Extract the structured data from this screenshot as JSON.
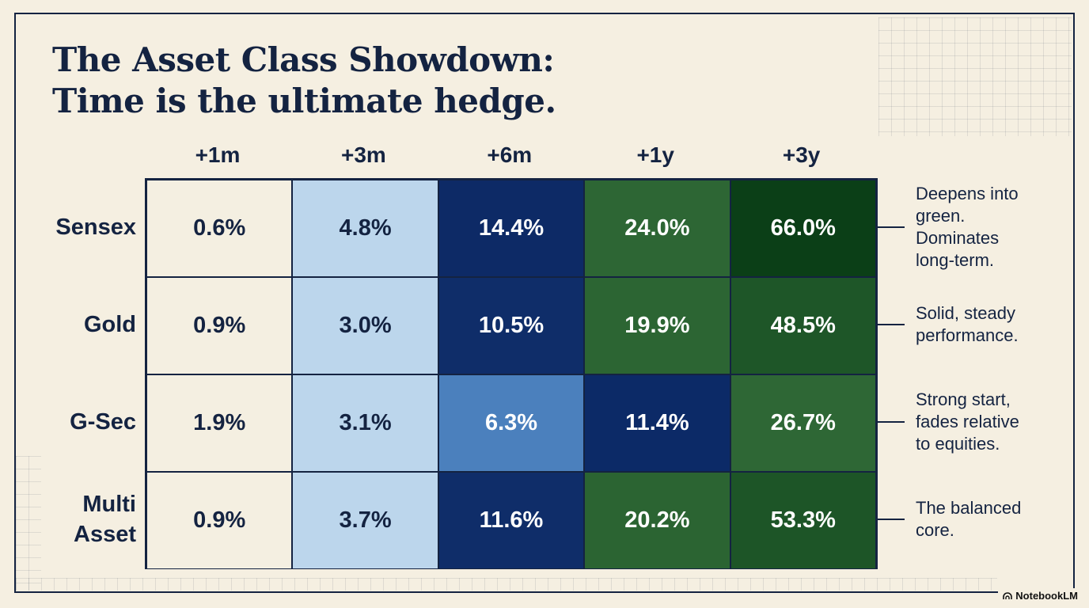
{
  "title": {
    "line1": "The Asset Class Showdown:",
    "line2": "Time is the ultimate hedge."
  },
  "chart_data": {
    "type": "heatmap",
    "title": "The Asset Class Showdown: Time is the ultimate hedge.",
    "columns": [
      "+1m",
      "+3m",
      "+6m",
      "+1y",
      "+3y"
    ],
    "rows": [
      "Sensex",
      "Gold",
      "G-Sec",
      "Multi Asset"
    ],
    "values": [
      [
        0.6,
        4.8,
        14.4,
        24.0,
        66.0
      ],
      [
        0.9,
        3.0,
        10.5,
        19.9,
        48.5
      ],
      [
        1.9,
        3.1,
        6.3,
        11.4,
        26.7
      ],
      [
        0.9,
        3.7,
        11.6,
        20.2,
        53.3
      ]
    ],
    "labels": [
      [
        "0.6%",
        "4.8%",
        "14.4%",
        "24.0%",
        "66.0%"
      ],
      [
        "0.9%",
        "3.0%",
        "10.5%",
        "19.9%",
        "48.5%"
      ],
      [
        "1.9%",
        "3.1%",
        "6.3%",
        "11.4%",
        "26.7%"
      ],
      [
        "0.9%",
        "3.7%",
        "11.6%",
        "20.2%",
        "53.3%"
      ]
    ],
    "cell_colors": [
      [
        "#f4efe1",
        "#bcd6ec",
        "#0d2a66",
        "#2d6634",
        "#0b3f17"
      ],
      [
        "#f4efe1",
        "#bcd6ec",
        "#0f2d69",
        "#2c6533",
        "#1e5628"
      ],
      [
        "#f4efe1",
        "#bcd6ec",
        "#4b80bd",
        "#0c2a67",
        "#2e6735"
      ],
      [
        "#f4efe1",
        "#bcd6ec",
        "#0f2d69",
        "#2b6432",
        "#1d5527"
      ]
    ],
    "text_colors": [
      [
        "#142341",
        "#142341",
        "#ffffff",
        "#ffffff",
        "#ffffff"
      ],
      [
        "#142341",
        "#142341",
        "#ffffff",
        "#ffffff",
        "#ffffff"
      ],
      [
        "#142341",
        "#142341",
        "#ffffff",
        "#ffffff",
        "#ffffff"
      ],
      [
        "#142341",
        "#142341",
        "#ffffff",
        "#ffffff",
        "#ffffff"
      ]
    ],
    "annotations": [
      [
        "Deepens into",
        "green.",
        "Dominates",
        "long-term."
      ],
      [
        "Solid, steady",
        "performance."
      ],
      [
        "Strong start,",
        "fades relative",
        "to equities."
      ],
      [
        "The balanced",
        "core."
      ]
    ]
  },
  "branding": {
    "label": "NotebookLM",
    "icon": "notebooklm-icon"
  },
  "colors": {
    "background": "#f5efe1",
    "ink": "#142341"
  }
}
